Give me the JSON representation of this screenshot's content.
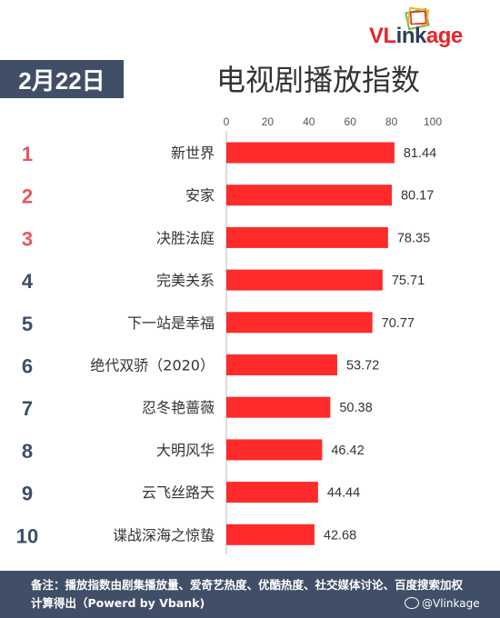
{
  "brand": {
    "part1": "VL",
    "part2": "ink",
    "part3": "age",
    "accent": "#e8242b",
    "dark": "#2c3e58"
  },
  "date": "2月22日",
  "title": "电视剧播放指数",
  "footer": {
    "note": "备注：播放指数由剧集播放量、爱奇艺热度、优酷热度、社交媒体讨论、百度搜索加权计算得出（Powerd by Vbank)",
    "weibo": "@Vlinkage"
  },
  "chart_data": {
    "type": "bar",
    "orientation": "horizontal",
    "ranks": [
      "1",
      "2",
      "3",
      "4",
      "5",
      "6",
      "7",
      "8",
      "9",
      "10"
    ],
    "categories": [
      "新世界",
      "安家",
      "决胜法庭",
      "完美关系",
      "下一站是幸福",
      "绝代双骄（2020）",
      "忍冬艳蔷薇",
      "大明风华",
      "云飞丝路天",
      "谍战深海之惊蛰"
    ],
    "values": [
      81.44,
      80.17,
      78.35,
      75.71,
      70.77,
      53.72,
      50.38,
      46.42,
      44.44,
      42.68
    ],
    "value_labels": [
      "81.44",
      "80.17",
      "78.35",
      "75.71",
      "70.77",
      "53.72",
      "50.38",
      "46.42",
      "44.44",
      "42.68"
    ],
    "xticks": [
      "0",
      "20",
      "40",
      "60",
      "80",
      "100"
    ],
    "xlim": [
      0,
      100
    ],
    "axis_position": "top",
    "bar_color": "#ff2a2a",
    "rank_color_top3": "#e8555e",
    "rank_color_rest": "#3f4e66"
  }
}
